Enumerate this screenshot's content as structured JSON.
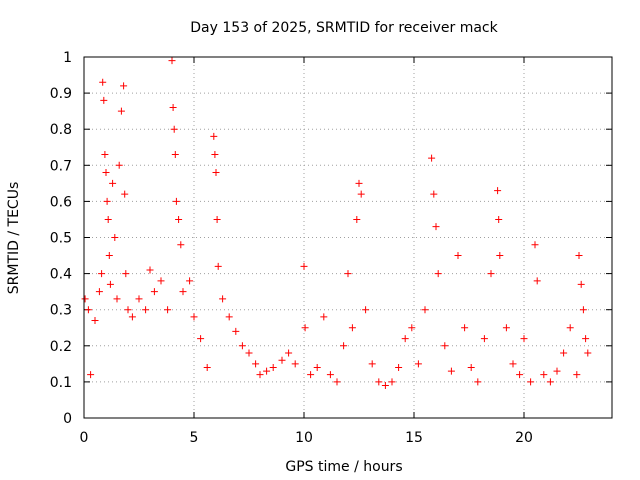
{
  "chart_data": {
    "type": "scatter",
    "title": "Day 153 of 2025, SRMTID for receiver mack",
    "xlabel": "GPS time / hours",
    "ylabel": "SRMTID / TECUs",
    "xlim": [
      0,
      24
    ],
    "ylim": [
      0,
      1
    ],
    "x_ticks": [
      0,
      5,
      10,
      15,
      20
    ],
    "x_tick_labels": [
      "0",
      "5",
      "10",
      "15",
      "20"
    ],
    "y_ticks": [
      0,
      0.1,
      0.2,
      0.3,
      0.4,
      0.5,
      0.6,
      0.7,
      0.8,
      0.9,
      1
    ],
    "y_tick_labels": [
      "0",
      "0.1",
      "0.2",
      "0.3",
      "0.4",
      "0.5",
      "0.6",
      "0.7",
      "0.8",
      "0.9",
      "1"
    ],
    "grid": true,
    "marker": "+",
    "marker_color": "#ff0000",
    "data_end_hour": 23.0,
    "series": [
      {
        "name": "SRMTID",
        "x": [
          0.05,
          0.2,
          0.3,
          0.5,
          0.7,
          0.8,
          0.85,
          0.9,
          0.95,
          1.0,
          1.05,
          1.1,
          1.15,
          1.2,
          1.3,
          1.4,
          1.5,
          1.6,
          1.7,
          1.8,
          1.85,
          1.9,
          2.0,
          2.2,
          2.5,
          2.8,
          3.0,
          3.2,
          3.5,
          3.8,
          4.0,
          4.05,
          4.1,
          4.15,
          4.2,
          4.3,
          4.4,
          4.5,
          4.8,
          5.0,
          5.3,
          5.6,
          5.9,
          5.95,
          6.0,
          6.05,
          6.1,
          6.3,
          6.6,
          6.9,
          7.2,
          7.5,
          7.8,
          8.0,
          8.3,
          8.6,
          9.0,
          9.3,
          9.6,
          10.0,
          10.05,
          10.3,
          10.6,
          10.9,
          11.2,
          11.5,
          11.8,
          12.0,
          12.2,
          12.4,
          12.5,
          12.6,
          12.8,
          13.1,
          13.4,
          13.7,
          14.0,
          14.3,
          14.6,
          14.9,
          15.2,
          15.5,
          15.8,
          15.9,
          16.0,
          16.1,
          16.4,
          16.7,
          17.0,
          17.3,
          17.6,
          17.9,
          18.2,
          18.5,
          18.8,
          18.85,
          18.9,
          19.2,
          19.5,
          19.8,
          20.0,
          20.3,
          20.5,
          20.6,
          20.9,
          21.2,
          21.5,
          21.8,
          22.1,
          22.4,
          22.5,
          22.6,
          22.7,
          22.8,
          22.9
        ],
        "y": [
          0.33,
          0.3,
          0.12,
          0.27,
          0.35,
          0.4,
          0.93,
          0.88,
          0.73,
          0.68,
          0.6,
          0.55,
          0.45,
          0.37,
          0.65,
          0.5,
          0.33,
          0.7,
          0.85,
          0.92,
          0.62,
          0.4,
          0.3,
          0.28,
          0.33,
          0.3,
          0.41,
          0.35,
          0.38,
          0.3,
          0.99,
          0.86,
          0.8,
          0.73,
          0.6,
          0.55,
          0.48,
          0.35,
          0.38,
          0.28,
          0.22,
          0.14,
          0.78,
          0.73,
          0.68,
          0.55,
          0.42,
          0.33,
          0.28,
          0.24,
          0.2,
          0.18,
          0.15,
          0.12,
          0.13,
          0.14,
          0.16,
          0.18,
          0.15,
          0.42,
          0.25,
          0.12,
          0.14,
          0.28,
          0.12,
          0.1,
          0.2,
          0.4,
          0.25,
          0.55,
          0.65,
          0.62,
          0.3,
          0.15,
          0.1,
          0.09,
          0.1,
          0.14,
          0.22,
          0.25,
          0.15,
          0.3,
          0.72,
          0.62,
          0.53,
          0.4,
          0.2,
          0.13,
          0.45,
          0.25,
          0.14,
          0.1,
          0.22,
          0.4,
          0.63,
          0.55,
          0.45,
          0.25,
          0.15,
          0.12,
          0.22,
          0.1,
          0.48,
          0.38,
          0.12,
          0.1,
          0.13,
          0.18,
          0.25,
          0.12,
          0.45,
          0.37,
          0.3,
          0.22,
          0.18
        ]
      }
    ]
  }
}
